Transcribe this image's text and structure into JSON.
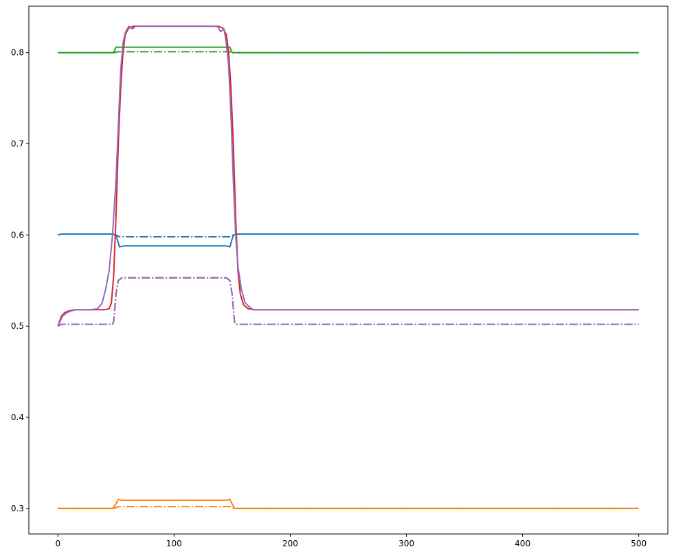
{
  "chart_data": {
    "type": "line",
    "title": "",
    "xlabel": "",
    "ylabel": "",
    "xlim": [
      -25,
      525
    ],
    "ylim": [
      0.272,
      0.851
    ],
    "x_ticks": [
      0,
      100,
      200,
      300,
      400,
      500
    ],
    "x_tick_labels": [
      "0",
      "100",
      "200",
      "300",
      "400",
      "500"
    ],
    "y_ticks": [
      0.3,
      0.4,
      0.5,
      0.6,
      0.7,
      0.8
    ],
    "y_tick_labels": [
      "0.3",
      "0.4",
      "0.5",
      "0.6",
      "0.7",
      "0.8"
    ],
    "grid": false,
    "legend": "none",
    "series": [
      {
        "color": "#1f77b4",
        "dash": "solid",
        "points": [
          [
            0,
            0.6
          ],
          [
            3,
            0.601
          ],
          [
            47,
            0.601
          ],
          [
            50,
            0.6
          ],
          [
            53,
            0.587
          ],
          [
            57,
            0.588
          ],
          [
            145,
            0.588
          ],
          [
            148,
            0.587
          ],
          [
            151,
            0.6
          ],
          [
            154,
            0.601
          ],
          [
            500,
            0.601
          ]
        ]
      },
      {
        "color": "#1f77b4",
        "dash": "dashdot",
        "points": [
          [
            0,
            0.6
          ],
          [
            3,
            0.601
          ],
          [
            47,
            0.601
          ],
          [
            50,
            0.6
          ],
          [
            53,
            0.598
          ],
          [
            148,
            0.598
          ],
          [
            151,
            0.6
          ],
          [
            154,
            0.601
          ],
          [
            500,
            0.601
          ]
        ]
      },
      {
        "color": "#ff7f0e",
        "dash": "solid",
        "points": [
          [
            0,
            0.3
          ],
          [
            47,
            0.3
          ],
          [
            50,
            0.305
          ],
          [
            52,
            0.31
          ],
          [
            55,
            0.309
          ],
          [
            145,
            0.309
          ],
          [
            148,
            0.31
          ],
          [
            150,
            0.305
          ],
          [
            152,
            0.3
          ],
          [
            500,
            0.3
          ]
        ]
      },
      {
        "color": "#ff7f0e",
        "dash": "dashdot",
        "points": [
          [
            0,
            0.3
          ],
          [
            48,
            0.3
          ],
          [
            52,
            0.302
          ],
          [
            148,
            0.302
          ],
          [
            152,
            0.3
          ],
          [
            500,
            0.3
          ]
        ]
      },
      {
        "color": "#2ca02c",
        "dash": "solid",
        "points": [
          [
            0,
            0.8
          ],
          [
            48,
            0.8
          ],
          [
            50,
            0.806
          ],
          [
            148,
            0.806
          ],
          [
            150,
            0.8
          ],
          [
            500,
            0.8
          ]
        ]
      },
      {
        "color": "#2ca02c",
        "dash": "dashdot",
        "points": [
          [
            0,
            0.8
          ],
          [
            48,
            0.8
          ],
          [
            52,
            0.801
          ],
          [
            148,
            0.801
          ],
          [
            152,
            0.8
          ],
          [
            500,
            0.8
          ]
        ]
      },
      {
        "color": "#d62728",
        "dash": "solid",
        "points": [
          [
            0,
            0.5
          ],
          [
            3,
            0.511
          ],
          [
            6,
            0.515
          ],
          [
            10,
            0.517
          ],
          [
            15,
            0.518
          ],
          [
            40,
            0.518
          ],
          [
            44,
            0.519
          ],
          [
            46,
            0.525
          ],
          [
            48,
            0.555
          ],
          [
            50,
            0.62
          ],
          [
            52,
            0.7
          ],
          [
            54,
            0.76
          ],
          [
            56,
            0.8
          ],
          [
            58,
            0.82
          ],
          [
            61,
            0.827
          ],
          [
            65,
            0.829
          ],
          [
            138,
            0.829
          ],
          [
            142,
            0.827
          ],
          [
            145,
            0.82
          ],
          [
            147,
            0.8
          ],
          [
            149,
            0.76
          ],
          [
            151,
            0.7
          ],
          [
            153,
            0.62
          ],
          [
            155,
            0.56
          ],
          [
            157,
            0.535
          ],
          [
            160,
            0.523
          ],
          [
            164,
            0.519
          ],
          [
            170,
            0.518
          ],
          [
            500,
            0.518
          ]
        ]
      },
      {
        "color": "#d62728",
        "dash": "dashdot",
        "points": [
          [
            0,
            0.5
          ],
          [
            3,
            0.502
          ],
          [
            47,
            0.502
          ],
          [
            48,
            0.505
          ],
          [
            50,
            0.535
          ],
          [
            52,
            0.55
          ],
          [
            55,
            0.553
          ],
          [
            145,
            0.553
          ],
          [
            148,
            0.55
          ],
          [
            150,
            0.535
          ],
          [
            152,
            0.505
          ],
          [
            153,
            0.502
          ],
          [
            500,
            0.502
          ]
        ]
      },
      {
        "color": "#9467bd",
        "dash": "solid",
        "points": [
          [
            0,
            0.5
          ],
          [
            4,
            0.511
          ],
          [
            8,
            0.515
          ],
          [
            12,
            0.517
          ],
          [
            16,
            0.518
          ],
          [
            28,
            0.518
          ],
          [
            34,
            0.519
          ],
          [
            38,
            0.525
          ],
          [
            41,
            0.54
          ],
          [
            44,
            0.56
          ],
          [
            47,
            0.6
          ],
          [
            50,
            0.66
          ],
          [
            52,
            0.72
          ],
          [
            54,
            0.78
          ],
          [
            56,
            0.81
          ],
          [
            58,
            0.822
          ],
          [
            61,
            0.829
          ],
          [
            64,
            0.826
          ],
          [
            67,
            0.829
          ],
          [
            70,
            0.829
          ],
          [
            135,
            0.829
          ],
          [
            138,
            0.828
          ],
          [
            140,
            0.823
          ],
          [
            143,
            0.826
          ],
          [
            145,
            0.81
          ],
          [
            147,
            0.785
          ],
          [
            149,
            0.73
          ],
          [
            151,
            0.66
          ],
          [
            153,
            0.6
          ],
          [
            155,
            0.565
          ],
          [
            158,
            0.54
          ],
          [
            161,
            0.526
          ],
          [
            164,
            0.522
          ],
          [
            168,
            0.518
          ],
          [
            500,
            0.518
          ]
        ]
      },
      {
        "color": "#9467bd",
        "dash": "dashdot",
        "points": [
          [
            0,
            0.5
          ],
          [
            3,
            0.502
          ],
          [
            47,
            0.502
          ],
          [
            48,
            0.505
          ],
          [
            50,
            0.535
          ],
          [
            52,
            0.55
          ],
          [
            55,
            0.553
          ],
          [
            145,
            0.553
          ],
          [
            148,
            0.55
          ],
          [
            150,
            0.535
          ],
          [
            152,
            0.505
          ],
          [
            153,
            0.502
          ],
          [
            500,
            0.502
          ]
        ]
      }
    ]
  }
}
